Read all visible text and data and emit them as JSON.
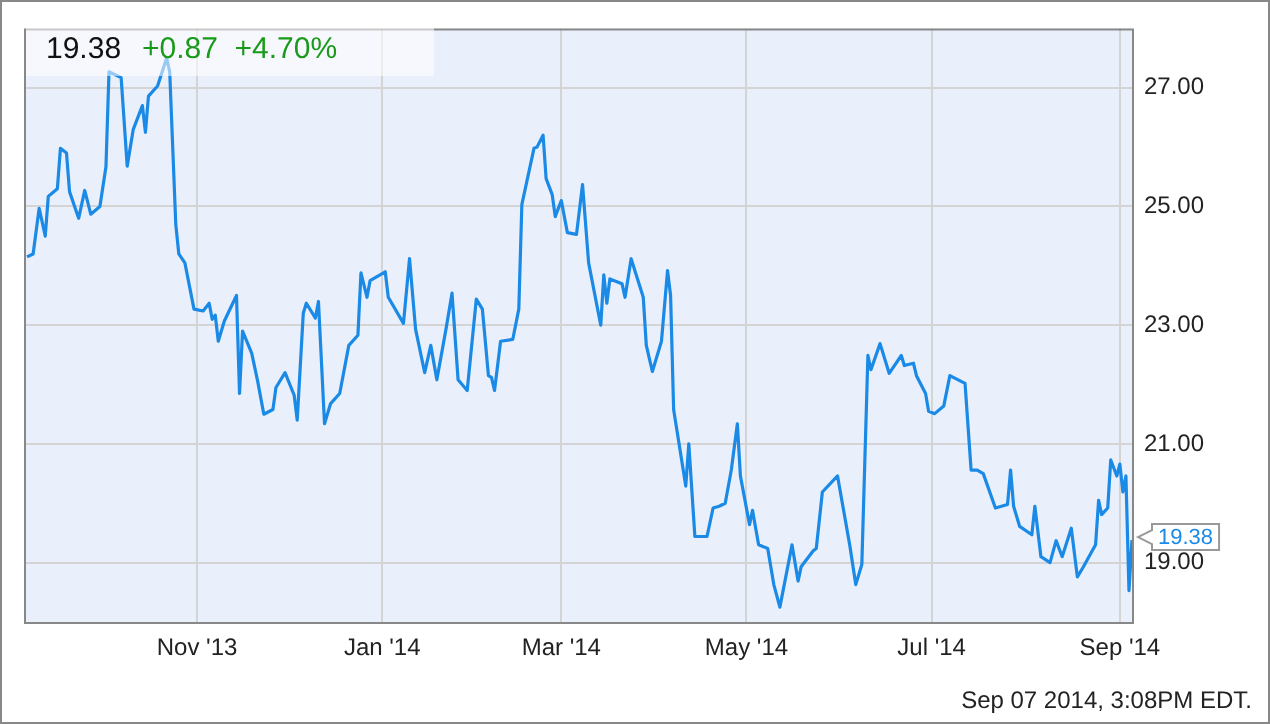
{
  "chart_data": {
    "type": "line",
    "title": "19.38",
    "subtitle": "+0.87  +4.70%",
    "x": [
      "2013-09-06",
      "2013-09-08",
      "2013-09-10",
      "2013-09-12",
      "2013-09-13",
      "2013-09-16",
      "2013-09-17",
      "2013-09-19",
      "2013-09-20",
      "2013-09-23",
      "2013-09-25",
      "2013-09-27",
      "2013-09-30",
      "2013-10-02",
      "2013-10-03",
      "2013-10-07",
      "2013-10-09",
      "2013-10-11",
      "2013-10-14",
      "2013-10-15",
      "2013-10-16",
      "2013-10-19",
      "2013-10-22",
      "2013-10-23",
      "2013-10-25",
      "2013-10-26",
      "2013-10-28",
      "2013-10-31",
      "2013-11-03",
      "2013-11-05",
      "2013-11-06",
      "2013-11-07",
      "2013-11-08",
      "2013-11-10",
      "2013-11-14",
      "2013-11-15",
      "2013-11-16",
      "2013-11-19",
      "2013-11-21",
      "2013-11-23",
      "2013-11-26",
      "2013-11-27",
      "2013-11-30",
      "2013-12-03",
      "2013-12-04",
      "2013-12-06",
      "2013-12-07",
      "2013-12-10",
      "2013-12-11",
      "2013-12-13",
      "2013-12-15",
      "2013-12-18",
      "2013-12-21",
      "2013-12-24",
      "2013-12-25",
      "2013-12-27",
      "2013-12-28",
      "2014-01-02",
      "2014-01-03",
      "2014-01-08",
      "2014-01-10",
      "2014-01-12",
      "2014-01-15",
      "2014-01-17",
      "2014-01-19",
      "2014-01-22",
      "2014-01-24",
      "2014-01-26",
      "2014-01-29",
      "2014-02-01",
      "2014-02-03",
      "2014-02-05",
      "2014-02-06",
      "2014-02-07",
      "2014-02-09",
      "2014-02-13",
      "2014-02-15",
      "2014-02-16",
      "2014-02-20",
      "2014-02-21",
      "2014-02-23",
      "2014-02-24",
      "2014-02-26",
      "2014-02-27",
      "2014-03-01",
      "2014-03-03",
      "2014-03-06",
      "2014-03-08",
      "2014-03-10",
      "2014-03-14",
      "2014-03-15",
      "2014-03-16",
      "2014-03-17",
      "2014-03-21",
      "2014-03-22",
      "2014-03-24",
      "2014-03-28",
      "2014-03-29",
      "2014-03-31",
      "2014-04-03",
      "2014-04-05",
      "2014-04-06",
      "2014-04-07",
      "2014-04-11",
      "2014-04-12",
      "2014-04-14",
      "2014-04-18",
      "2014-04-20",
      "2014-04-22",
      "2014-04-24",
      "2014-04-26",
      "2014-04-28",
      "2014-04-29",
      "2014-05-02",
      "2014-05-03",
      "2014-05-05",
      "2014-05-08",
      "2014-05-10",
      "2014-05-12",
      "2014-05-16",
      "2014-05-18",
      "2014-05-19",
      "2014-05-23",
      "2014-05-24",
      "2014-05-26",
      "2014-05-31",
      "2014-06-04",
      "2014-06-06",
      "2014-06-08",
      "2014-06-10",
      "2014-06-11",
      "2014-06-14",
      "2014-06-17",
      "2014-06-21",
      "2014-06-22",
      "2014-06-25",
      "2014-06-26",
      "2014-06-29",
      "2014-06-30",
      "2014-07-02",
      "2014-07-05",
      "2014-07-07",
      "2014-07-12",
      "2014-07-14",
      "2014-07-16",
      "2014-07-18",
      "2014-07-22",
      "2014-07-26",
      "2014-07-27",
      "2014-07-28",
      "2014-07-30",
      "2014-08-03",
      "2014-08-04",
      "2014-08-06",
      "2014-08-09",
      "2014-08-11",
      "2014-08-13",
      "2014-08-16",
      "2014-08-18",
      "2014-08-20",
      "2014-08-24",
      "2014-08-25",
      "2014-08-26",
      "2014-08-28",
      "2014-08-29",
      "2014-08-31",
      "2014-09-01",
      "2014-09-02",
      "2014-09-03",
      "2014-09-04",
      "2014-09-05"
    ],
    "series": [
      {
        "color": "#1a8ae6",
        "values": [
          24.15,
          24.2,
          24.97,
          24.5,
          25.17,
          25.3,
          25.98,
          25.9,
          25.25,
          24.8,
          25.27,
          24.87,
          25.0,
          25.67,
          27.27,
          27.17,
          25.68,
          26.3,
          26.7,
          26.25,
          26.86,
          27.03,
          27.5,
          27.27,
          24.7,
          24.2,
          24.05,
          23.27,
          23.24,
          23.37,
          23.1,
          23.17,
          22.73,
          23.07,
          23.5,
          21.85,
          22.9,
          22.53,
          22.05,
          21.5,
          21.58,
          21.95,
          22.2,
          21.82,
          21.4,
          23.2,
          23.37,
          23.12,
          23.4,
          21.34,
          21.68,
          21.85,
          22.66,
          22.83,
          23.88,
          23.47,
          23.75,
          23.9,
          23.47,
          23.03,
          24.12,
          22.93,
          22.2,
          22.66,
          22.08,
          22.93,
          23.54,
          22.08,
          21.9,
          23.44,
          23.27,
          22.15,
          22.12,
          21.9,
          22.73,
          22.76,
          23.27,
          25.03,
          25.98,
          26.0,
          26.2,
          25.47,
          25.2,
          24.83,
          25.1,
          24.56,
          24.53,
          25.37,
          24.05,
          23.0,
          23.85,
          23.37,
          23.78,
          23.7,
          23.47,
          24.12,
          23.47,
          22.66,
          22.22,
          22.73,
          23.92,
          23.5,
          21.58,
          20.29,
          21.0,
          19.44,
          19.44,
          19.92,
          19.95,
          20.0,
          20.56,
          21.34,
          20.46,
          19.64,
          19.88,
          19.3,
          19.24,
          18.63,
          18.25,
          19.3,
          18.69,
          18.93,
          19.2,
          19.24,
          20.19,
          20.46,
          19.3,
          18.63,
          18.97,
          22.49,
          22.25,
          22.69,
          22.19,
          22.49,
          22.32,
          22.36,
          22.15,
          21.85,
          21.55,
          21.51,
          21.64,
          22.15,
          22.02,
          20.56,
          20.56,
          20.5,
          19.92,
          19.98,
          20.56,
          19.95,
          19.61,
          19.47,
          19.95,
          19.1,
          19.0,
          19.37,
          19.1,
          19.58,
          18.76,
          18.93,
          19.3,
          20.05,
          19.81,
          19.92,
          20.73,
          20.46,
          20.66,
          20.19,
          20.46,
          18.53,
          19.38
        ]
      }
    ],
    "xlim": [
      "2013-09-05",
      "2014-09-05"
    ],
    "xticks": [
      {
        "value": "2013-11-01",
        "label": "Nov '13"
      },
      {
        "value": "2014-01-01",
        "label": "Jan '14"
      },
      {
        "value": "2014-03-01",
        "label": "Mar '14"
      },
      {
        "value": "2014-05-01",
        "label": "May '14"
      },
      {
        "value": "2014-07-01",
        "label": "Jul '14"
      },
      {
        "value": "2014-09-01",
        "label": "Sep '14"
      }
    ],
    "ylim": [
      18,
      28
    ],
    "yticks": [
      {
        "value": 19,
        "label": "19.00"
      },
      {
        "value": 21,
        "label": "21.00"
      },
      {
        "value": 23,
        "label": "23.00"
      },
      {
        "value": 25,
        "label": "25.00"
      },
      {
        "value": 27,
        "label": "27.00"
      }
    ],
    "grid": true,
    "marker": "none",
    "line_style": "solid",
    "legend": false,
    "annotations": [
      {
        "text": "19.38",
        "x": "2014-09-05",
        "y": 19.38
      },
      "Sep 07 2014, 3:08PM EDT."
    ]
  }
}
